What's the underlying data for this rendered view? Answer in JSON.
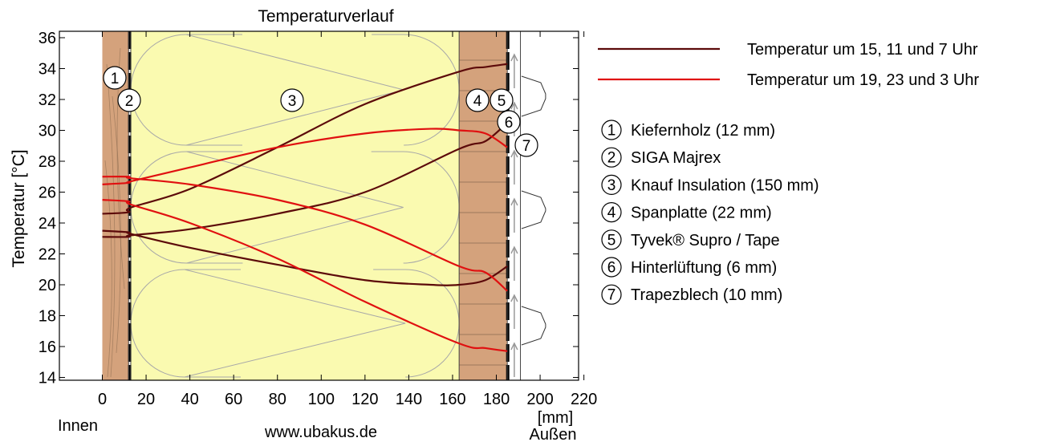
{
  "chart_data": {
    "type": "line",
    "title": "Temperaturverlauf",
    "ylabel": "Temperatur [°C]",
    "xlabel": "[mm]",
    "x_left_label": "Innen",
    "x_right_label": "Außen",
    "watermark": "www.ubakus.de",
    "xlim": [
      -10,
      220
    ],
    "ylim": [
      13.8,
      36.3
    ],
    "x_ticks": [
      0,
      20,
      40,
      60,
      80,
      100,
      120,
      140,
      160,
      180,
      200,
      220
    ],
    "y_ticks": [
      14,
      16,
      18,
      20,
      22,
      24,
      26,
      28,
      30,
      32,
      34,
      36
    ],
    "layers": [
      {
        "id": "1",
        "name": "Kiefernholz (12 mm)",
        "x0": 0,
        "x1": 12,
        "color": "#d4a27c"
      },
      {
        "id": "2",
        "name": "SIGA Majrex",
        "x0": 12,
        "x1": 13,
        "color": "#ffffff"
      },
      {
        "id": "3",
        "name": "Knauf Insulation (150 mm)",
        "x0": 13,
        "x1": 163,
        "color": "#fafab0"
      },
      {
        "id": "4",
        "name": "Spanplatte (22 mm)",
        "x0": 163,
        "x1": 185,
        "color": "#d4a27c"
      },
      {
        "id": "5",
        "name": "Tyvek® Supro / Tape",
        "x0": 185,
        "x1": 185.5,
        "color": "#ffffff"
      },
      {
        "id": "6",
        "name": "Hinterlüftung (6 mm)",
        "x0": 185.5,
        "x1": 191,
        "color": "#ffffff"
      },
      {
        "id": "7",
        "name": "Trapezblech (10 mm)",
        "x0": 191,
        "x1": 201,
        "color": "#ffffff"
      }
    ],
    "series": [
      {
        "name": "Temperatur um 15, 11 und 7 Uhr",
        "color": "#5c0a0a",
        "lines": [
          {
            "x": [
              0,
              12,
              13,
              40,
              80,
              120,
              163,
              175,
              185
            ],
            "y": [
              24.6,
              24.7,
              25.0,
              26.2,
              28.9,
              31.7,
              33.8,
              34.1,
              34.3
            ]
          },
          {
            "x": [
              0,
              12,
              13,
              40,
              80,
              120,
              163,
              175,
              185
            ],
            "y": [
              23.1,
              23.1,
              23.2,
              23.6,
              24.6,
              26.0,
              28.8,
              29.3,
              30.5
            ]
          },
          {
            "x": [
              0,
              12,
              13,
              40,
              80,
              120,
              150,
              163,
              175,
              185
            ],
            "y": [
              23.5,
              23.4,
              23.3,
              22.4,
              21.3,
              20.3,
              20.0,
              20.0,
              20.3,
              21.2
            ]
          }
        ]
      },
      {
        "name": "Temperatur um 19, 23 und 3 Uhr",
        "color": "#e01010",
        "lines": [
          {
            "x": [
              0,
              12,
              13,
              40,
              80,
              120,
              150,
              163,
              175,
              185
            ],
            "y": [
              26.5,
              26.6,
              26.7,
              27.6,
              28.9,
              29.8,
              30.1,
              30.0,
              29.8,
              28.9
            ]
          },
          {
            "x": [
              0,
              12,
              13,
              40,
              80,
              120,
              163,
              175,
              185
            ],
            "y": [
              27.0,
              27.0,
              26.9,
              26.5,
              25.5,
              23.9,
              21.2,
              20.8,
              19.6
            ]
          },
          {
            "x": [
              0,
              12,
              13,
              40,
              80,
              120,
              163,
              175,
              185
            ],
            "y": [
              25.5,
              25.4,
              25.2,
              24.0,
              21.7,
              18.9,
              16.2,
              15.9,
              15.7
            ]
          }
        ]
      }
    ],
    "legend": {
      "lines": [
        {
          "label": "Temperatur um 15, 11 und 7 Uhr",
          "color": "#5c0a0a"
        },
        {
          "label": "Temperatur um 19, 23 und 3 Uhr",
          "color": "#e01010"
        }
      ],
      "layers": [
        {
          "num": "1",
          "label": "Kiefernholz (12 mm)"
        },
        {
          "num": "2",
          "label": "SIGA Majrex"
        },
        {
          "num": "3",
          "label": "Knauf Insulation (150 mm)"
        },
        {
          "num": "4",
          "label": "Spanplatte (22 mm)"
        },
        {
          "num": "5",
          "label": "Tyvek® Supro / Tape"
        },
        {
          "num": "6",
          "label": "Hinterlüftung (6 mm)"
        },
        {
          "num": "7",
          "label": "Trapezblech (10 mm)"
        }
      ]
    },
    "grid": false
  }
}
